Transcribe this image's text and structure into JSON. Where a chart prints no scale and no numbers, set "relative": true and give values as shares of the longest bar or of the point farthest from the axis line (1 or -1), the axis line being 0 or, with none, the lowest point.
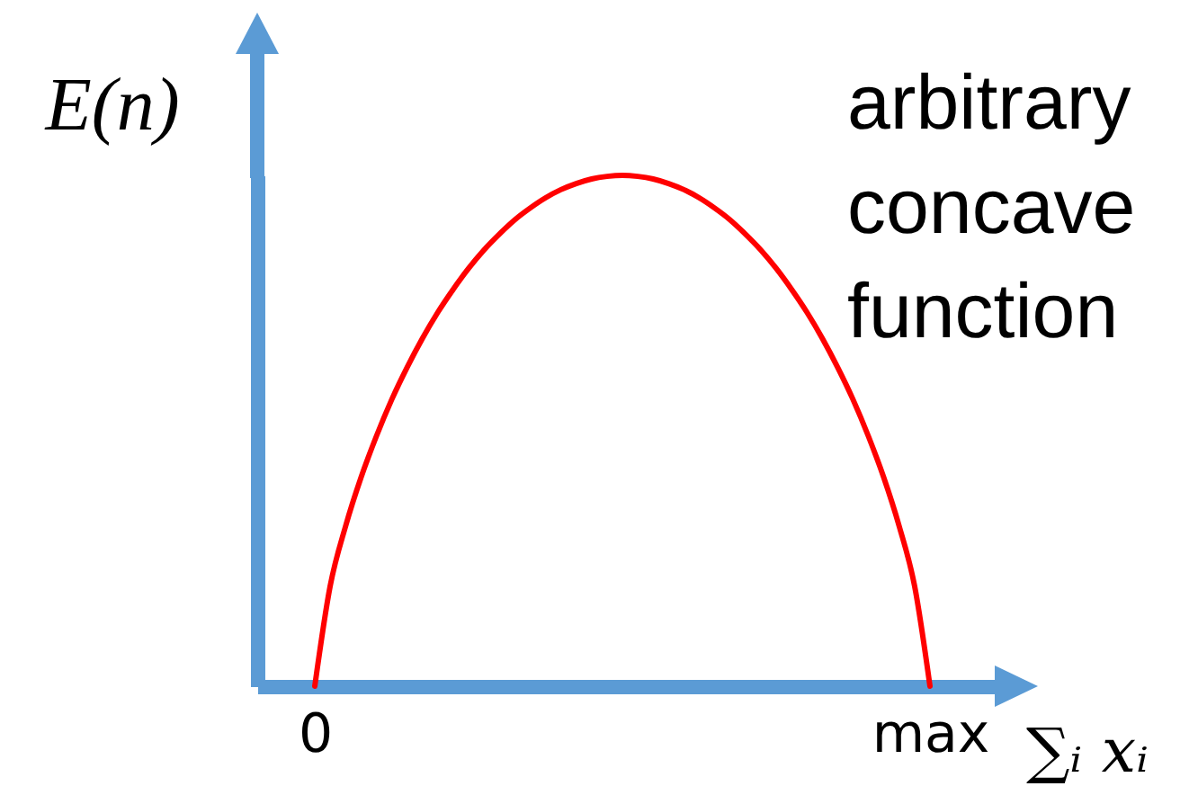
{
  "chart_data": {
    "type": "line",
    "ylabel": "E(n)",
    "xlabel": "∑ᵢ xᵢ",
    "annotations": [
      "arbitrary concave function"
    ],
    "categories": [
      "0",
      null,
      null,
      null,
      null,
      null,
      null,
      null,
      null,
      null,
      null,
      null,
      null,
      null,
      null,
      null,
      null,
      null,
      null,
      null,
      null,
      null,
      null,
      null,
      null,
      null,
      null,
      null,
      null,
      null,
      null,
      null,
      null,
      null,
      null,
      null,
      null,
      null,
      null,
      null,
      "max"
    ],
    "values": [
      0,
      0.196,
      0.313,
      0.408,
      0.489,
      0.561,
      0.624,
      0.681,
      0.732,
      0.777,
      0.818,
      0.854,
      0.885,
      0.913,
      0.936,
      0.956,
      0.972,
      0.984,
      0.993,
      0.998,
      1,
      0.998,
      0.993,
      0.984,
      0.972,
      0.956,
      0.936,
      0.913,
      0.885,
      0.854,
      0.818,
      0.777,
      0.732,
      0.681,
      0.624,
      0.561,
      0.489,
      0.408,
      0.313,
      0.196,
      0
    ],
    "color": "#ff0000",
    "relative": true
  }
}
